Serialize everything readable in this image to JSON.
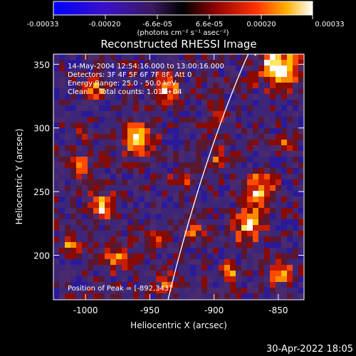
{
  "colorbar": {
    "tick_labels": [
      "-0.00033",
      "-0.00020",
      "-6.6e-05",
      "6.6e-05",
      "0.00020",
      "0.00033"
    ],
    "units_label": "(photons cm⁻² s⁻¹ asec⁻²)",
    "range": [
      -0.00033,
      0.00033
    ]
  },
  "title": "Reconstructed RHESSI Image",
  "annotations": {
    "time": "14-May-2004 12:54:16.000 to 13:00:16.000",
    "detectors": "Detectors: 3F 4F 5F 6F 7F 8F, Att 0",
    "energy": "Energy Range: 25.0 - 50.0 keV",
    "clean": "Clean     Total counts: 1.01E+04",
    "peak": "Position of Peak = [-892,343]"
  },
  "axes": {
    "xlabel": "Heliocentric X (arcsec)",
    "ylabel": "Heliocentric Y (arcsec)",
    "xlim": [
      -1025,
      -830
    ],
    "ylim": [
      165,
      358
    ],
    "xticks": [
      -1000,
      -950,
      -900,
      -850
    ],
    "yticks": [
      200,
      250,
      300,
      350
    ],
    "xtick_labels": [
      "-1000",
      "-950",
      "-900",
      "-850"
    ],
    "ytick_labels": [
      "200",
      "250",
      "300",
      "350"
    ]
  },
  "limb_color": "#ffffff",
  "footer_timestamp": "30-Apr-2022 18:05"
}
